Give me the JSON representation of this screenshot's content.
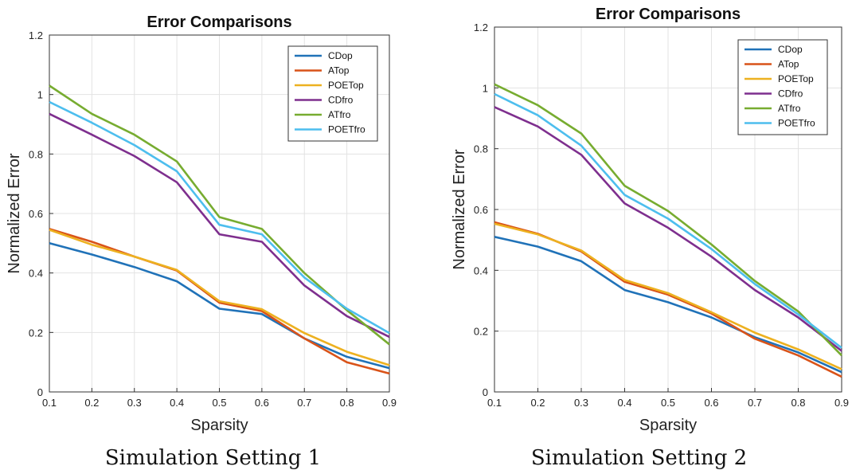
{
  "chart_data": [
    {
      "type": "line",
      "title": "Error Comparisons",
      "xlabel": "Sparsity",
      "ylabel": "Normalized Error",
      "caption": "Simulation Setting 1",
      "xlim": [
        0.1,
        0.9
      ],
      "ylim": [
        0,
        1.2
      ],
      "xticks": [
        "0.1",
        "0.2",
        "0.3",
        "0.4",
        "0.5",
        "0.6",
        "0.7",
        "0.8",
        "0.9"
      ],
      "yticks": [
        "0",
        "0.2",
        "0.4",
        "0.6",
        "0.8",
        "1",
        "1.2"
      ],
      "grid": true,
      "legend_position": "top-right",
      "x": [
        0.1,
        0.2,
        0.3,
        0.4,
        0.5,
        0.6,
        0.7,
        0.8,
        0.9
      ],
      "series": [
        {
          "name": "CDop",
          "color": "#2072b8",
          "values": [
            0.5,
            0.462,
            0.42,
            0.372,
            0.28,
            0.262,
            0.18,
            0.118,
            0.08
          ]
        },
        {
          "name": "ATop",
          "color": "#d95319",
          "values": [
            0.548,
            0.505,
            0.455,
            0.408,
            0.3,
            0.272,
            0.18,
            0.1,
            0.062
          ]
        },
        {
          "name": "POETop",
          "color": "#edb120",
          "values": [
            0.545,
            0.495,
            0.455,
            0.41,
            0.305,
            0.278,
            0.198,
            0.135,
            0.09
          ]
        },
        {
          "name": "CDfro",
          "color": "#7e2f8e",
          "values": [
            0.935,
            0.865,
            0.793,
            0.705,
            0.53,
            0.505,
            0.358,
            0.255,
            0.185
          ]
        },
        {
          "name": "ATfro",
          "color": "#77ac30",
          "values": [
            1.03,
            0.935,
            0.865,
            0.775,
            0.588,
            0.548,
            0.4,
            0.275,
            0.16
          ]
        },
        {
          "name": "POETfro",
          "color": "#4dbeee",
          "values": [
            0.975,
            0.905,
            0.83,
            0.742,
            0.562,
            0.53,
            0.385,
            0.28,
            0.198
          ]
        }
      ]
    },
    {
      "type": "line",
      "title": "Error Comparisons",
      "xlabel": "Sparsity",
      "ylabel": "Normalized Error",
      "caption": "Simulation Setting 2",
      "xlim": [
        0.1,
        0.9
      ],
      "ylim": [
        0,
        1.2
      ],
      "xticks": [
        "0.1",
        "0.2",
        "0.3",
        "0.4",
        "0.5",
        "0.6",
        "0.7",
        "0.8",
        "0.9"
      ],
      "yticks": [
        "0",
        "0.2",
        "0.4",
        "0.6",
        "0.8",
        "1",
        "1.2"
      ],
      "grid": true,
      "legend_position": "top-right",
      "x": [
        0.1,
        0.2,
        0.3,
        0.4,
        0.5,
        0.6,
        0.7,
        0.8,
        0.9
      ],
      "series": [
        {
          "name": "CDop",
          "color": "#2072b8",
          "values": [
            0.51,
            0.478,
            0.43,
            0.335,
            0.295,
            0.245,
            0.18,
            0.13,
            0.065
          ]
        },
        {
          "name": "ATop",
          "color": "#d95319",
          "values": [
            0.558,
            0.52,
            0.462,
            0.362,
            0.32,
            0.258,
            0.175,
            0.12,
            0.05
          ]
        },
        {
          "name": "POETop",
          "color": "#edb120",
          "values": [
            0.553,
            0.518,
            0.465,
            0.368,
            0.325,
            0.262,
            0.195,
            0.14,
            0.075
          ]
        },
        {
          "name": "CDfro",
          "color": "#7e2f8e",
          "values": [
            0.937,
            0.873,
            0.78,
            0.62,
            0.54,
            0.445,
            0.335,
            0.245,
            0.135
          ]
        },
        {
          "name": "ATfro",
          "color": "#77ac30",
          "values": [
            1.012,
            0.943,
            0.85,
            0.678,
            0.595,
            0.485,
            0.365,
            0.265,
            0.12
          ]
        },
        {
          "name": "POETfro",
          "color": "#4dbeee",
          "values": [
            0.98,
            0.91,
            0.81,
            0.648,
            0.57,
            0.47,
            0.355,
            0.255,
            0.145
          ]
        }
      ]
    }
  ]
}
